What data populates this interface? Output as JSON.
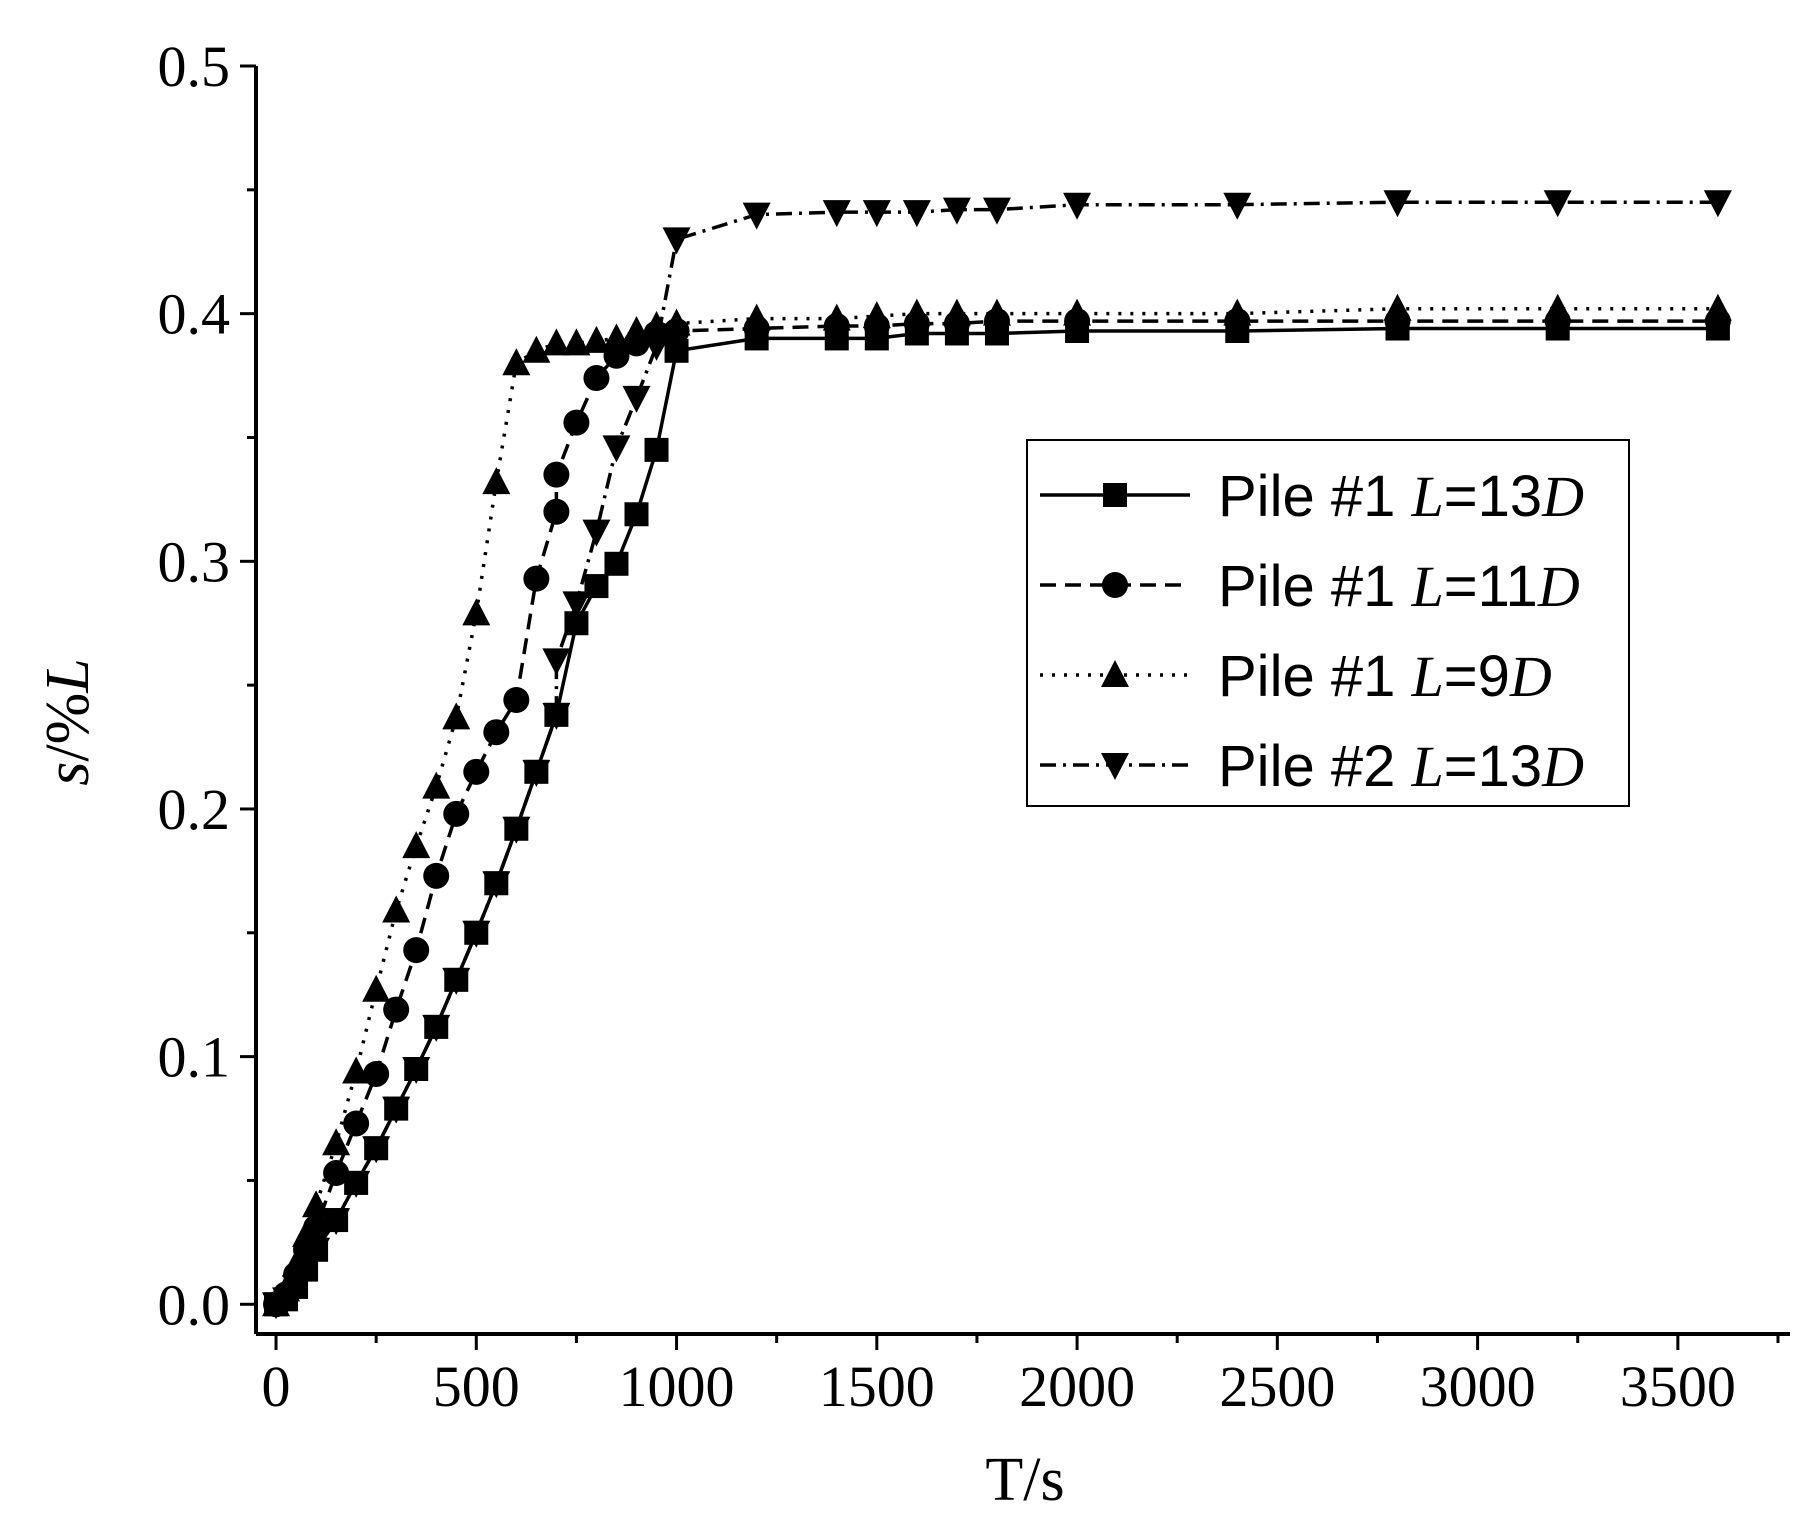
{
  "chart_data": {
    "type": "line",
    "xlabel": "T/s",
    "ylabel": {
      "parts": [
        "s",
        "/%",
        "L"
      ]
    },
    "xlim": [
      -50,
      3780
    ],
    "ylim": [
      -0.012,
      0.5
    ],
    "x_ticks": [
      0,
      500,
      1000,
      1500,
      2000,
      2500,
      3000,
      3500
    ],
    "x_tick_labels": [
      "0",
      "500",
      "1000",
      "1500",
      "2000",
      "2500",
      "3000",
      "3500"
    ],
    "y_ticks": [
      0.0,
      0.1,
      0.2,
      0.3,
      0.4,
      0.5
    ],
    "y_tick_labels": [
      "0.0",
      "0.1",
      "0.2",
      "0.3",
      "0.4",
      "0.5"
    ],
    "grid": false,
    "legend_position": "center-right",
    "series": [
      {
        "name": "Pile #1 L=13D",
        "legend": {
          "prefix": "Pile #1 ",
          "v1": "L",
          "mid": "=13",
          "v2": "D"
        },
        "marker": "square",
        "line_style": "solid",
        "x": [
          0,
          25,
          50,
          75,
          100,
          150,
          200,
          250,
          300,
          350,
          400,
          450,
          500,
          550,
          600,
          650,
          700,
          750,
          800,
          850,
          900,
          950,
          1000,
          1200,
          1400,
          1500,
          1600,
          1700,
          1800,
          2000,
          2400,
          2800,
          3200,
          3600
        ],
        "y": [
          0.0,
          0.002,
          0.007,
          0.014,
          0.022,
          0.034,
          0.049,
          0.063,
          0.079,
          0.095,
          0.112,
          0.131,
          0.15,
          0.17,
          0.192,
          0.215,
          0.238,
          0.275,
          0.29,
          0.299,
          0.319,
          0.345,
          0.385,
          0.39,
          0.39,
          0.39,
          0.392,
          0.392,
          0.392,
          0.393,
          0.393,
          0.394,
          0.394,
          0.394
        ]
      },
      {
        "name": "Pile #1 L=11D",
        "legend": {
          "prefix": "Pile #1 ",
          "v1": "L",
          "mid": "=11",
          "v2": "D"
        },
        "marker": "circle",
        "line_style": "dashed",
        "x": [
          0,
          25,
          50,
          75,
          100,
          150,
          200,
          250,
          300,
          350,
          400,
          450,
          500,
          550,
          600,
          650,
          700,
          700,
          750,
          800,
          850,
          900,
          950,
          1000,
          1200,
          1400,
          1500,
          1600,
          1700,
          1800,
          2000,
          2400,
          2800,
          3200,
          3600
        ],
        "y": [
          0.0,
          0.004,
          0.012,
          0.022,
          0.031,
          0.053,
          0.073,
          0.093,
          0.119,
          0.143,
          0.173,
          0.198,
          0.215,
          0.231,
          0.244,
          0.293,
          0.32,
          0.335,
          0.356,
          0.374,
          0.383,
          0.388,
          0.392,
          0.393,
          0.394,
          0.395,
          0.395,
          0.396,
          0.396,
          0.397,
          0.397,
          0.397,
          0.397,
          0.397,
          0.397
        ]
      },
      {
        "name": "Pile #1 L=9D",
        "legend": {
          "prefix": "Pile #1 ",
          "v1": "L",
          "mid": "=9",
          "v2": "D"
        },
        "marker": "triangle-up",
        "line_style": "dotted",
        "x": [
          0,
          25,
          50,
          75,
          100,
          150,
          200,
          250,
          300,
          350,
          400,
          450,
          500,
          550,
          600,
          650,
          700,
          750,
          800,
          850,
          900,
          950,
          1000,
          1200,
          1400,
          1500,
          1600,
          1700,
          1800,
          2000,
          2400,
          2800,
          3200,
          3600
        ],
        "y": [
          0.0,
          0.006,
          0.016,
          0.028,
          0.04,
          0.065,
          0.094,
          0.127,
          0.159,
          0.185,
          0.209,
          0.237,
          0.279,
          0.332,
          0.38,
          0.385,
          0.388,
          0.388,
          0.389,
          0.39,
          0.393,
          0.395,
          0.396,
          0.398,
          0.398,
          0.399,
          0.4,
          0.4,
          0.4,
          0.4,
          0.4,
          0.402,
          0.402,
          0.402
        ]
      },
      {
        "name": "Pile #2 L=13D",
        "legend": {
          "prefix": "Pile #2 ",
          "v1": "L",
          "mid": "=13",
          "v2": "D"
        },
        "marker": "triangle-down",
        "line_style": "dashdot",
        "x": [
          0,
          25,
          50,
          75,
          100,
          150,
          200,
          250,
          300,
          350,
          400,
          450,
          500,
          550,
          600,
          650,
          700,
          700,
          750,
          800,
          850,
          900,
          950,
          1000,
          1200,
          1400,
          1500,
          1600,
          1700,
          1800,
          2000,
          2400,
          2800,
          3200,
          3600
        ],
        "y": [
          0.0,
          0.002,
          0.007,
          0.014,
          0.022,
          0.034,
          0.049,
          0.063,
          0.079,
          0.095,
          0.112,
          0.131,
          0.15,
          0.17,
          0.192,
          0.215,
          0.238,
          0.26,
          0.283,
          0.312,
          0.346,
          0.366,
          0.387,
          0.43,
          0.44,
          0.441,
          0.441,
          0.441,
          0.442,
          0.442,
          0.444,
          0.444,
          0.445,
          0.445,
          0.445
        ]
      }
    ]
  }
}
